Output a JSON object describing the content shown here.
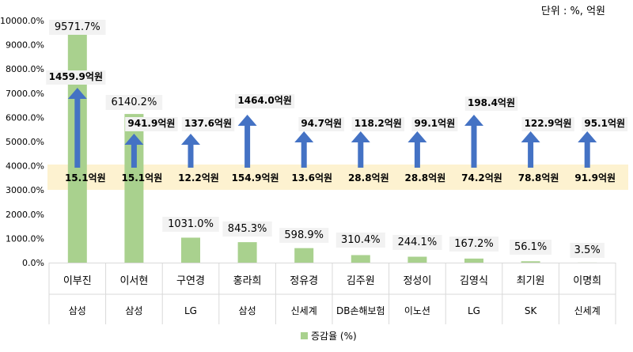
{
  "unit_note": "단위 : %, 억원",
  "legend_label": "증감율 (%)",
  "chart_data": {
    "type": "bar",
    "title": "",
    "xlabel": "",
    "ylabel": "",
    "ylim": [
      0,
      10000
    ],
    "y_ticks": [
      "0.0%",
      "1000.0%",
      "2000.0%",
      "3000.0%",
      "4000.0%",
      "5000.0%",
      "6000.0%",
      "7000.0%",
      "8000.0%",
      "9000.0%",
      "10000.0%"
    ],
    "grid": false,
    "legend_position": "bottom",
    "colors": {
      "bar": "#a9d18e",
      "arrow": "#4472c4",
      "band": "#fdf2d0",
      "label_bg": "#f2f2f2"
    },
    "categories": [
      {
        "name": "이부진",
        "company": "삼성"
      },
      {
        "name": "이서현",
        "company": "삼성"
      },
      {
        "name": "구연경",
        "company": "LG"
      },
      {
        "name": "홍라희",
        "company": "삼성"
      },
      {
        "name": "정유경",
        "company": "신세계"
      },
      {
        "name": "김주원",
        "company": "DB손해보험"
      },
      {
        "name": "정성이",
        "company": "이노션"
      },
      {
        "name": "김영식",
        "company": "LG"
      },
      {
        "name": "최기원",
        "company": "SK"
      },
      {
        "name": "이명희",
        "company": "신세계"
      }
    ],
    "series": [
      {
        "name": "증감율 (%)",
        "values": [
          9571.7,
          6140.2,
          1031.0,
          845.3,
          598.9,
          310.4,
          244.1,
          167.2,
          56.1,
          3.5
        ],
        "labels": [
          "9571.7%",
          "6140.2%",
          "1031.0%",
          "845.3%",
          "598.9%",
          "310.4%",
          "244.1%",
          "167.2%",
          "56.1%",
          "3.5%"
        ]
      }
    ],
    "amounts": {
      "before": [
        "15.1억원",
        "15.1억원",
        "12.2억원",
        "154.9억원",
        "13.6억원",
        "28.8억원",
        "28.8억원",
        "74.2억원",
        "78.8억원",
        "91.9억원"
      ],
      "after": [
        "1459.9억원",
        "941.9억원",
        "137.6억원",
        "1464.0억원",
        "94.7억원",
        "118.2억원",
        "99.1억원",
        "198.4억원",
        "122.9억원",
        "95.1억원"
      ]
    }
  }
}
